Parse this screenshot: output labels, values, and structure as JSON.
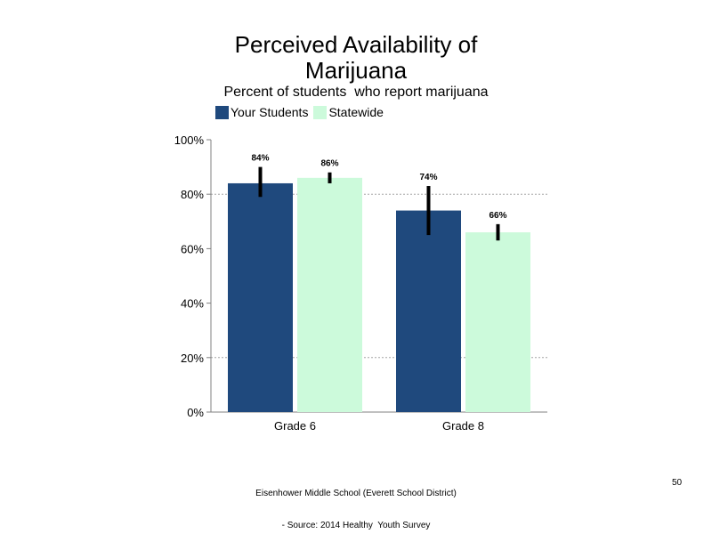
{
  "slide": {
    "title_line1": "Perceived Availability of",
    "title_line2": "Marijuana",
    "subtitle": "Percent of students  who report marijuana",
    "footer_line1": "Eisenhower Middle School (Everett School District)",
    "footer_line2": "- Source: 2014 Healthy  Youth Survey",
    "page_number": "50"
  },
  "colors": {
    "your_students": "#1f497d",
    "statewide": "#ccfadb",
    "error_bar": "#000000",
    "axis": "#808080",
    "grid": "#a6a6a6"
  },
  "chart_data": {
    "type": "bar",
    "categories": [
      "Grade 6",
      "Grade 8"
    ],
    "series": [
      {
        "name": "Your Students",
        "values": [
          84,
          74
        ],
        "labels": [
          "84%",
          "74%"
        ],
        "error_low": [
          79,
          65
        ],
        "error_high": [
          90,
          83
        ]
      },
      {
        "name": "Statewide",
        "values": [
          86,
          66
        ],
        "labels": [
          "86%",
          "66%"
        ],
        "error_low": [
          84,
          63
        ],
        "error_high": [
          88,
          69
        ]
      }
    ],
    "ylim": [
      0,
      100
    ],
    "yticks": [
      0,
      20,
      40,
      60,
      80,
      100
    ],
    "ytick_labels": [
      "0%",
      "20%",
      "40%",
      "60%",
      "80%",
      "100%"
    ],
    "gridlines": [
      20,
      80
    ],
    "legend_position": "top-left"
  }
}
